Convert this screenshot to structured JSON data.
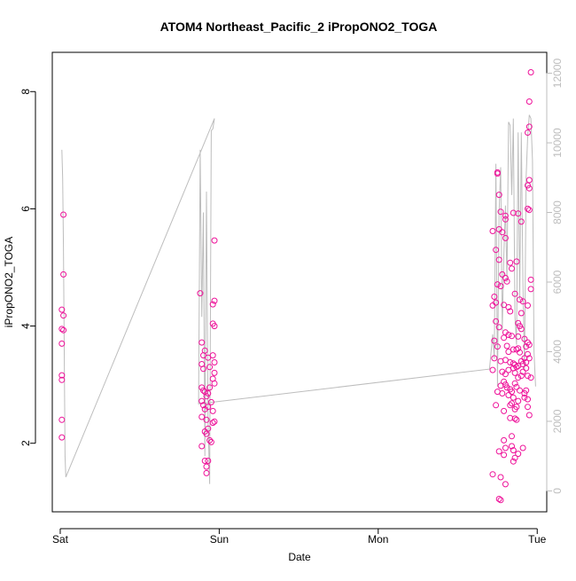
{
  "chart_data": {
    "type": "scatter",
    "title": "ATOM4 Northeast_Pacific_2 iPropONO2_TOGA",
    "xlabel": "Date",
    "ylabel": "iPropONO2_TOGA",
    "x_ticks": [
      "Sat",
      "Sun",
      "Mon",
      "Tue"
    ],
    "x_tick_days": [
      0,
      1,
      2,
      3
    ],
    "xlim": [
      -0.05,
      3.06
    ],
    "ylim": [
      0.83,
      8.67
    ],
    "y_ticks": [
      2,
      4,
      6,
      8
    ],
    "y2lim": [
      -600,
      12600
    ],
    "y2_ticks": [
      0,
      2000,
      4000,
      6000,
      8000,
      10000,
      12000
    ],
    "grid": false,
    "colors": {
      "points": "#ee1199",
      "line": "#bdbdbd",
      "axis": "#000000",
      "right_axis": "#bdbdbd"
    },
    "series": [
      {
        "type": "points",
        "points": [
          [
            0.02,
            5.9
          ],
          [
            0.02,
            4.88
          ],
          [
            0.01,
            4.28
          ],
          [
            0.02,
            4.18
          ],
          [
            0.01,
            3.95
          ],
          [
            0.02,
            3.93
          ],
          [
            0.01,
            3.7
          ],
          [
            0.01,
            3.16
          ],
          [
            0.01,
            3.08
          ],
          [
            0.01,
            2.4
          ],
          [
            0.01,
            2.1
          ],
          [
            0.88,
            4.56
          ],
          [
            0.97,
            5.46
          ],
          [
            0.97,
            4.43
          ],
          [
            0.96,
            4.37
          ],
          [
            0.96,
            4.04
          ],
          [
            0.97,
            4.0
          ],
          [
            0.89,
            3.72
          ],
          [
            0.91,
            3.58
          ],
          [
            0.9,
            3.5
          ],
          [
            0.93,
            3.46
          ],
          [
            0.96,
            3.5
          ],
          [
            0.97,
            3.38
          ],
          [
            0.89,
            3.35
          ],
          [
            0.9,
            3.27
          ],
          [
            0.94,
            3.3
          ],
          [
            0.97,
            3.2
          ],
          [
            0.96,
            3.1
          ],
          [
            0.97,
            3.02
          ],
          [
            0.89,
            2.95
          ],
          [
            0.9,
            2.9
          ],
          [
            0.91,
            2.88
          ],
          [
            0.92,
            2.8
          ],
          [
            0.93,
            2.85
          ],
          [
            0.94,
            2.95
          ],
          [
            0.95,
            2.7
          ],
          [
            0.96,
            2.55
          ],
          [
            0.89,
            2.72
          ],
          [
            0.9,
            2.65
          ],
          [
            0.91,
            2.58
          ],
          [
            0.89,
            2.45
          ],
          [
            0.93,
            2.62
          ],
          [
            0.92,
            2.4
          ],
          [
            0.96,
            2.35
          ],
          [
            0.97,
            2.37
          ],
          [
            0.91,
            2.2
          ],
          [
            0.92,
            2.16
          ],
          [
            0.93,
            2.25
          ],
          [
            0.94,
            2.05
          ],
          [
            0.95,
            2.02
          ],
          [
            0.89,
            1.95
          ],
          [
            0.91,
            1.7
          ],
          [
            0.92,
            1.6
          ],
          [
            0.93,
            1.7
          ],
          [
            0.92,
            1.49
          ],
          [
            2.72,
            5.62
          ],
          [
            2.75,
            6.62
          ],
          [
            2.75,
            6.6
          ],
          [
            2.76,
            6.24
          ],
          [
            2.77,
            5.95
          ],
          [
            2.8,
            5.88
          ],
          [
            2.8,
            5.82
          ],
          [
            2.85,
            5.93
          ],
          [
            2.88,
            5.92
          ],
          [
            2.95,
            6.49
          ],
          [
            2.94,
            6.4
          ],
          [
            2.95,
            6.35
          ],
          [
            2.95,
            7.83
          ],
          [
            2.95,
            7.4
          ],
          [
            2.94,
            7.3
          ],
          [
            2.96,
            8.33
          ],
          [
            2.94,
            6.0
          ],
          [
            2.95,
            5.98
          ],
          [
            2.9,
            5.78
          ],
          [
            2.76,
            5.65
          ],
          [
            2.78,
            5.6
          ],
          [
            2.8,
            5.5
          ],
          [
            2.74,
            5.3
          ],
          [
            2.76,
            5.13
          ],
          [
            2.83,
            5.08
          ],
          [
            2.87,
            5.1
          ],
          [
            2.84,
            4.98
          ],
          [
            2.78,
            4.88
          ],
          [
            2.8,
            4.82
          ],
          [
            2.81,
            4.76
          ],
          [
            2.75,
            4.71
          ],
          [
            2.77,
            4.68
          ],
          [
            2.96,
            4.79
          ],
          [
            2.96,
            4.63
          ],
          [
            2.73,
            4.5
          ],
          [
            2.72,
            4.35
          ],
          [
            2.74,
            4.4
          ],
          [
            2.79,
            4.36
          ],
          [
            2.82,
            4.32
          ],
          [
            2.86,
            4.55
          ],
          [
            2.89,
            4.45
          ],
          [
            2.91,
            4.42
          ],
          [
            2.83,
            4.25
          ],
          [
            2.9,
            4.22
          ],
          [
            2.94,
            4.35
          ],
          [
            2.88,
            4.05
          ],
          [
            2.89,
            4.0
          ],
          [
            2.9,
            3.95
          ],
          [
            2.74,
            4.08
          ],
          [
            2.76,
            3.98
          ],
          [
            2.8,
            3.89
          ],
          [
            2.82,
            3.85
          ],
          [
            2.79,
            3.8
          ],
          [
            2.84,
            3.83
          ],
          [
            2.88,
            3.82
          ],
          [
            2.92,
            3.78
          ],
          [
            2.73,
            3.75
          ],
          [
            2.75,
            3.65
          ],
          [
            2.81,
            3.66
          ],
          [
            2.82,
            3.56
          ],
          [
            2.85,
            3.6
          ],
          [
            2.87,
            3.6
          ],
          [
            2.88,
            3.62
          ],
          [
            2.89,
            3.55
          ],
          [
            2.93,
            3.65
          ],
          [
            2.94,
            3.72
          ],
          [
            2.95,
            3.68
          ],
          [
            2.94,
            3.52
          ],
          [
            2.95,
            3.45
          ],
          [
            2.73,
            3.45
          ],
          [
            2.77,
            3.4
          ],
          [
            2.8,
            3.42
          ],
          [
            2.83,
            3.38
          ],
          [
            2.85,
            3.36
          ],
          [
            2.86,
            3.34
          ],
          [
            2.87,
            3.3
          ],
          [
            2.88,
            3.32
          ],
          [
            2.9,
            3.4
          ],
          [
            2.91,
            3.35
          ],
          [
            2.92,
            3.45
          ],
          [
            2.93,
            3.38
          ],
          [
            2.72,
            3.25
          ],
          [
            2.78,
            3.22
          ],
          [
            2.8,
            3.18
          ],
          [
            2.82,
            3.25
          ],
          [
            2.85,
            3.28
          ],
          [
            2.86,
            3.2
          ],
          [
            2.88,
            3.12
          ],
          [
            2.9,
            3.15
          ],
          [
            2.91,
            3.22
          ],
          [
            2.93,
            3.28
          ],
          [
            2.94,
            3.15
          ],
          [
            2.96,
            3.12
          ],
          [
            2.79,
            3.05
          ],
          [
            2.8,
            3.0
          ],
          [
            2.81,
            2.95
          ],
          [
            2.83,
            2.92
          ],
          [
            2.84,
            2.88
          ],
          [
            2.86,
            3.02
          ],
          [
            2.87,
            2.96
          ],
          [
            2.89,
            2.9
          ],
          [
            2.92,
            2.85
          ],
          [
            2.93,
            2.9
          ],
          [
            2.77,
            2.98
          ],
          [
            2.75,
            2.88
          ],
          [
            2.78,
            2.85
          ],
          [
            2.82,
            2.82
          ],
          [
            2.85,
            2.78
          ],
          [
            2.88,
            2.72
          ],
          [
            2.92,
            2.78
          ],
          [
            2.94,
            2.75
          ],
          [
            2.83,
            2.65
          ],
          [
            2.84,
            2.68
          ],
          [
            2.87,
            2.62
          ],
          [
            2.86,
            2.58
          ],
          [
            2.74,
            2.65
          ],
          [
            2.79,
            2.55
          ],
          [
            2.94,
            2.62
          ],
          [
            2.95,
            2.48
          ],
          [
            2.83,
            2.43
          ],
          [
            2.86,
            2.42
          ],
          [
            2.87,
            2.4
          ],
          [
            2.84,
            2.12
          ],
          [
            2.79,
            2.05
          ],
          [
            2.8,
            1.92
          ],
          [
            2.85,
            1.88
          ],
          [
            2.84,
            1.95
          ],
          [
            2.76,
            1.86
          ],
          [
            2.79,
            1.8
          ],
          [
            2.86,
            1.75
          ],
          [
            2.88,
            1.82
          ],
          [
            2.91,
            1.92
          ],
          [
            2.85,
            1.69
          ],
          [
            2.72,
            1.47
          ],
          [
            2.77,
            1.42
          ],
          [
            2.8,
            1.3
          ],
          [
            2.76,
            1.05
          ],
          [
            2.77,
            1.03
          ]
        ]
      },
      {
        "type": "line",
        "axis": "right",
        "points": [
          [
            0.01,
            9800
          ],
          [
            0.015,
            9000
          ],
          [
            0.02,
            7000
          ],
          [
            0.025,
            4000
          ],
          [
            0.03,
            1000
          ],
          [
            0.035,
            400
          ],
          [
            0.97,
            10700
          ],
          [
            0.96,
            10400
          ],
          [
            0.95,
            10350
          ],
          [
            0.94,
            200
          ],
          [
            0.93,
            2000
          ],
          [
            0.92,
            8600
          ],
          [
            0.91,
            1000
          ],
          [
            0.9,
            8000
          ],
          [
            0.89,
            5000
          ],
          [
            0.88,
            9800
          ],
          [
            0.87,
            2500
          ],
          [
            2.7,
            3500
          ],
          [
            2.72,
            4500
          ],
          [
            2.73,
            3800
          ],
          [
            2.74,
            9400
          ],
          [
            2.75,
            3000
          ],
          [
            2.76,
            8000
          ],
          [
            2.77,
            9300
          ],
          [
            2.78,
            4600
          ],
          [
            2.79,
            6800
          ],
          [
            2.8,
            8200
          ],
          [
            2.81,
            6000
          ],
          [
            2.82,
            10600
          ],
          [
            2.83,
            10500
          ],
          [
            2.84,
            8500
          ],
          [
            2.85,
            10700
          ],
          [
            2.86,
            5000
          ],
          [
            2.87,
            4200
          ],
          [
            2.88,
            10300
          ],
          [
            2.89,
            5500
          ],
          [
            2.9,
            10300
          ],
          [
            2.91,
            6000
          ],
          [
            2.92,
            3500
          ],
          [
            2.93,
            9000
          ],
          [
            2.94,
            10200
          ],
          [
            2.95,
            10800
          ],
          [
            2.96,
            10700
          ],
          [
            2.97,
            9500
          ],
          [
            2.98,
            4000
          ],
          [
            2.99,
            3000
          ]
        ]
      }
    ]
  }
}
